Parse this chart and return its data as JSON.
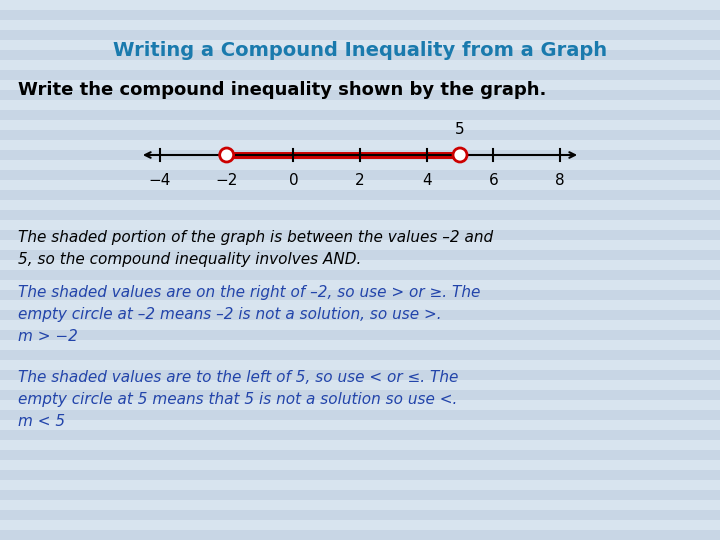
{
  "title": "Writing a Compound Inequality from a Graph",
  "title_color": "#1a7aad",
  "bg_color": "#ccd9e8",
  "stripe_color1": "#c8d6e5",
  "stripe_color2": "#d8e4ef",
  "subtitle": "Write the compound inequality shown by the graph.",
  "number_line": {
    "ticks": [
      -4,
      -2,
      0,
      2,
      4,
      6,
      8
    ],
    "open_circles": [
      -2,
      5
    ],
    "label_above_value": 5,
    "label_above_text": "5"
  },
  "paragraph1_color": "#000000",
  "paragraph1_line1": "The shaded portion of the graph is between the values –2 and",
  "paragraph1_line2": "5, so the compound inequality involves AND.",
  "paragraph2_color": "#2244aa",
  "paragraph2_line1": "The shaded values are on the right of –2, so use > or ≥. The",
  "paragraph2_line2": "empty circle at –2 means –2 is not a solution, so use >.",
  "paragraph2_line3": "m > −2",
  "paragraph3_color": "#2244aa",
  "paragraph3_line1": "The shaded values are to the left of 5, so use < or ≤. The",
  "paragraph3_line2": "empty circle at 5 means that 5 is not a solution so use <.",
  "paragraph3_line3": "m < 5",
  "line_color": "#cc0000",
  "circle_color": "#cc0000",
  "axis_color": "#000000",
  "num_stripes": 54,
  "figwidth": 7.2,
  "figheight": 5.4,
  "dpi": 100
}
